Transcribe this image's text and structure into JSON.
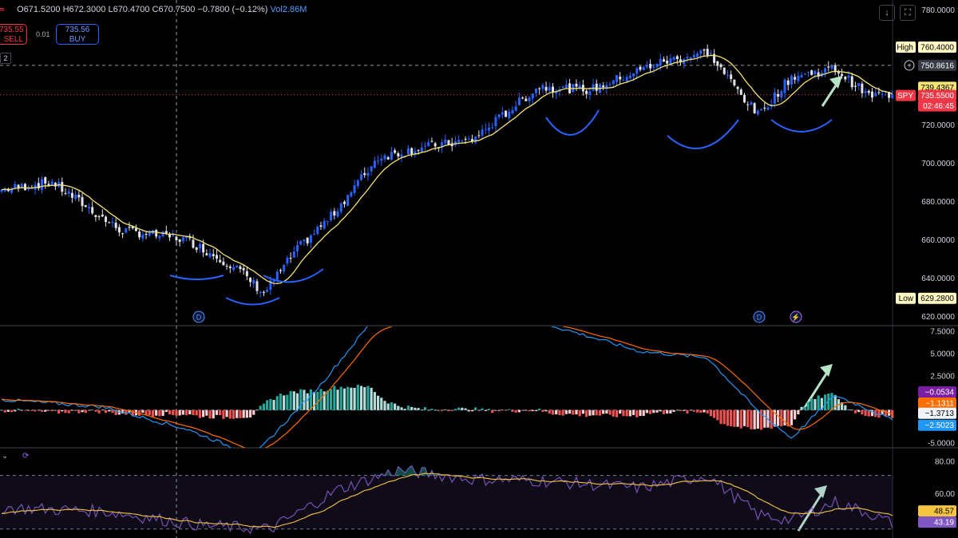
{
  "header": {
    "open": "O671.5200",
    "high": "H672.3000",
    "low": "L670.4700",
    "close": "C670.7500",
    "change": "−0.7800 (−0.12%)",
    "volume": "Vol2.86M",
    "logo_icon": "tradingview-logo-icon"
  },
  "trade": {
    "sell_price": "735.55",
    "sell_label": "SELL",
    "spread": "0.01",
    "buy_price": "735.56",
    "buy_label": "BUY",
    "quantity": "2"
  },
  "toolbar": {
    "download_icon": "download-icon",
    "fullscreen_icon": "fullscreen-icon"
  },
  "markers": {
    "dividend_label": "D",
    "earnings_icon": "lightning-icon"
  },
  "price_axis": {
    "ticks": [
      "780.0000",
      "760.0000",
      "740.0000",
      "720.0000",
      "700.0000",
      "680.0000",
      "660.0000",
      "640.0000",
      "620.0000"
    ],
    "high_label": "High",
    "high_value": "760.4000",
    "low_label": "Low",
    "low_value": "629.2800",
    "crosshair_value": "750.8616",
    "sma_value": "739.4367",
    "symbol": "SPY",
    "last_price": "735.5500",
    "countdown": "02:46:45"
  },
  "macd_axis": {
    "ticks": [
      "7.5000",
      "5.0000",
      "2.5000",
      "-5.0000"
    ],
    "hist_value": "−0.0534",
    "signal_value": "−1.1311",
    "zero_value": "−1.3713",
    "macd_value": "−2.5023"
  },
  "rsi_axis": {
    "ticks": [
      "80.00",
      "60.00"
    ],
    "ma_value": "48.57",
    "rsi_value": "43.19"
  },
  "colors": {
    "up": "#2962ff",
    "down": "#e0e3eb",
    "sma": "#f5e372",
    "macd": "#2196f3",
    "signal": "#ff6d00",
    "hist_pos": "#26a69a",
    "hist_pos_light": "#b2dfdb",
    "hist_neg": "#ef5350",
    "hist_neg_light": "#ffcdd2",
    "rsi": "#7e57c2",
    "rsi_ma": "#f5c542",
    "annotation": "#2962ff",
    "arrow": "#b7e4c7",
    "red_tag": "#f23645"
  },
  "chart_data": [
    {
      "type": "candlestick",
      "symbol": "SPY",
      "ylim": [
        615,
        785
      ],
      "high": 760.4,
      "low": 629.28,
      "last": 735.55,
      "sma_last": 739.4367,
      "key_points": [
        {
          "bar": 0,
          "price": 686
        },
        {
          "bar": 15,
          "price": 690
        },
        {
          "bar": 35,
          "price": 665
        },
        {
          "bar": 55,
          "price": 660
        },
        {
          "bar": 70,
          "price": 645
        },
        {
          "bar": 78,
          "price": 632
        },
        {
          "bar": 88,
          "price": 655
        },
        {
          "bar": 98,
          "price": 672
        },
        {
          "bar": 112,
          "price": 703
        },
        {
          "bar": 125,
          "price": 708
        },
        {
          "bar": 140,
          "price": 712
        },
        {
          "bar": 160,
          "price": 740
        },
        {
          "bar": 175,
          "price": 738
        },
        {
          "bar": 195,
          "price": 752
        },
        {
          "bar": 210,
          "price": 758
        },
        {
          "bar": 218,
          "price": 740
        },
        {
          "bar": 225,
          "price": 725
        },
        {
          "bar": 235,
          "price": 745
        },
        {
          "bar": 248,
          "price": 749
        },
        {
          "bar": 258,
          "price": 735
        },
        {
          "bar": 265,
          "price": 736
        }
      ]
    },
    {
      "type": "line",
      "name": "MACD",
      "ylim": [
        -5.6,
        8
      ],
      "key_points": [
        {
          "bar": 0,
          "macd": -0.2
        },
        {
          "bar": 30,
          "macd": -1.0
        },
        {
          "bar": 55,
          "macd": -3.5
        },
        {
          "bar": 75,
          "macd": -6.5
        },
        {
          "bar": 95,
          "macd": 1.5
        },
        {
          "bar": 110,
          "macd": 8.5
        },
        {
          "bar": 140,
          "macd": 8.8
        },
        {
          "bar": 160,
          "macd": 8.5
        },
        {
          "bar": 190,
          "macd": 5.2
        },
        {
          "bar": 210,
          "macd": 4.5
        },
        {
          "bar": 225,
          "macd": -1.5
        },
        {
          "bar": 235,
          "macd": -4.5
        },
        {
          "bar": 248,
          "macd": 0.3
        },
        {
          "bar": 258,
          "macd": -1.3
        },
        {
          "bar": 265,
          "macd": -2.5
        }
      ]
    },
    {
      "type": "line",
      "name": "RSI",
      "ylim": [
        35,
        85
      ],
      "bands": [
        70,
        40
      ],
      "key_points": [
        {
          "bar": 0,
          "rsi": 52
        },
        {
          "bar": 30,
          "rsi": 50
        },
        {
          "bar": 60,
          "rsi": 42
        },
        {
          "bar": 80,
          "rsi": 40
        },
        {
          "bar": 100,
          "rsi": 62
        },
        {
          "bar": 118,
          "rsi": 73
        },
        {
          "bar": 140,
          "rsi": 68
        },
        {
          "bar": 160,
          "rsi": 67
        },
        {
          "bar": 190,
          "rsi": 63
        },
        {
          "bar": 210,
          "rsi": 70
        },
        {
          "bar": 225,
          "rsi": 48
        },
        {
          "bar": 235,
          "rsi": 45
        },
        {
          "bar": 248,
          "rsi": 55
        },
        {
          "bar": 258,
          "rsi": 49
        },
        {
          "bar": 265,
          "rsi": 43
        }
      ]
    }
  ]
}
